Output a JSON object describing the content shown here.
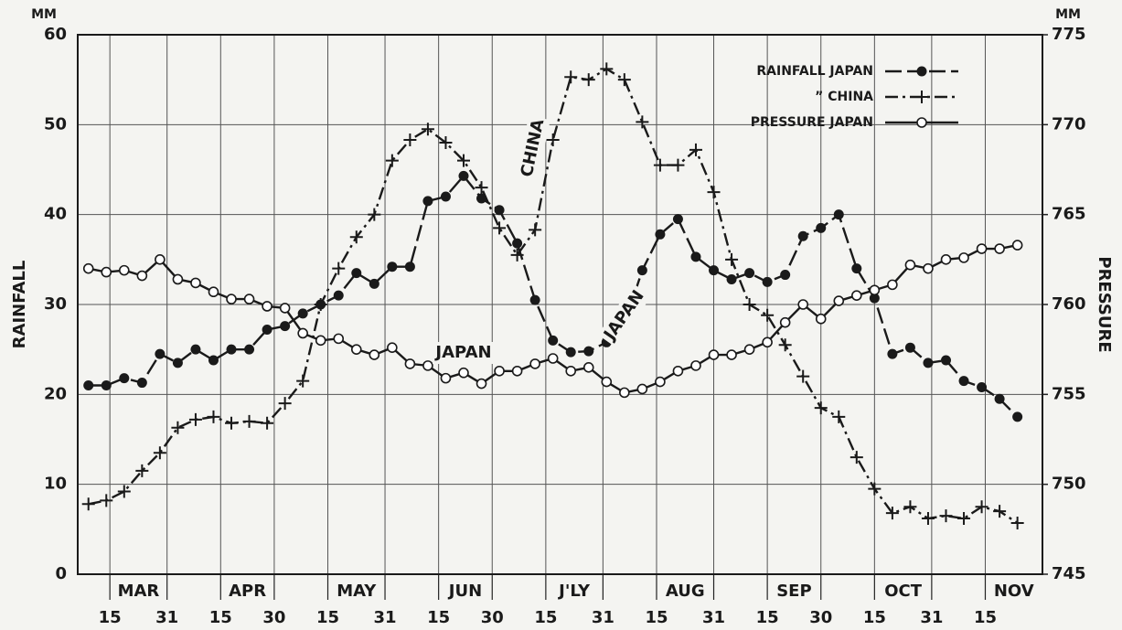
{
  "chart_data": {
    "type": "line",
    "y_label": "RAINFALL",
    "y2_label": "PRESSURE",
    "y_unit": "MM",
    "y2_unit": "MM",
    "x": [
      68,
      73,
      78,
      83,
      88,
      93,
      98,
      103,
      108,
      113,
      118,
      123,
      128,
      133,
      138,
      143,
      148,
      153,
      158,
      163,
      168,
      173,
      178,
      183,
      188,
      193,
      198,
      203,
      208,
      213,
      218,
      223,
      228,
      233,
      238,
      243,
      248,
      253,
      258,
      263,
      268,
      273,
      278,
      283,
      288,
      293,
      298,
      303,
      308,
      313,
      318,
      323,
      328
    ],
    "xlim": [
      65,
      335
    ],
    "xticks": [
      {
        "value": 74,
        "label": "15"
      },
      {
        "value": 90,
        "label": "31"
      },
      {
        "value": 105,
        "label": "15"
      },
      {
        "value": 120,
        "label": "30"
      },
      {
        "value": 135,
        "label": "15"
      },
      {
        "value": 151,
        "label": "31"
      },
      {
        "value": 166,
        "label": "15"
      },
      {
        "value": 181,
        "label": "30"
      },
      {
        "value": 196,
        "label": "15"
      },
      {
        "value": 212,
        "label": "31"
      },
      {
        "value": 227,
        "label": "15"
      },
      {
        "value": 243,
        "label": "31"
      },
      {
        "value": 258,
        "label": "15"
      },
      {
        "value": 273,
        "label": "30"
      },
      {
        "value": 288,
        "label": "15"
      },
      {
        "value": 304,
        "label": "31"
      },
      {
        "value": 319,
        "label": "15"
      }
    ],
    "months": [
      "MAR",
      "APR",
      "MAY",
      "JUN",
      "J'LY",
      "AUG",
      "SEP",
      "OCT",
      "NOV"
    ],
    "ylim": [
      0,
      60
    ],
    "yticks": [
      0,
      10,
      20,
      30,
      40,
      50,
      60
    ],
    "y2lim": [
      745,
      775
    ],
    "y2ticks": [
      745,
      750,
      755,
      760,
      765,
      770,
      775
    ],
    "grid": true,
    "series": [
      {
        "name": "RAINFALL  JAPAN",
        "color": "#1a1a1a",
        "marker": "dot",
        "dash": "18 6",
        "values": [
          21.0,
          21.0,
          21.8,
          21.3,
          24.5,
          23.5,
          25.0,
          23.8,
          25.0,
          25.0,
          27.2,
          27.6,
          29.0,
          30.0,
          31.0,
          33.5,
          32.3,
          34.2,
          34.2,
          41.5,
          42.0,
          44.3,
          41.8,
          40.5,
          36.8,
          30.5,
          26.0,
          24.7,
          24.8,
          25.8,
          27.8,
          33.8,
          37.8,
          39.5,
          35.3,
          33.8,
          32.8,
          33.5,
          32.5,
          33.3,
          37.6,
          38.5,
          40.0,
          34.0,
          30.7,
          24.5,
          25.2,
          23.5,
          23.8,
          21.5,
          20.8,
          19.5,
          17.5
        ]
      },
      {
        "name": "”   CHINA",
        "color": "#1a1a1a",
        "marker": "plus",
        "dash": "14 5 3 5",
        "values": [
          7.8,
          8.2,
          9.2,
          11.5,
          13.5,
          16.3,
          17.2,
          17.5,
          16.8,
          17.0,
          16.8,
          19.0,
          21.5,
          30.0,
          34.0,
          37.5,
          40.0,
          46.0,
          48.3,
          49.5,
          48.0,
          46.0,
          43.0,
          38.5,
          35.5,
          38.3,
          48.3,
          55.3,
          55.0,
          56.2,
          55.0,
          50.3,
          45.5,
          45.5,
          47.2,
          42.5,
          35.0,
          30.0,
          28.8,
          25.5,
          22.0,
          18.5,
          17.5,
          13.0,
          9.5,
          6.8,
          7.5,
          6.2,
          6.5,
          6.2,
          7.5,
          7.0,
          5.7
        ]
      },
      {
        "name": "PRESSURE  JAPAN",
        "color": "#1a1a1a",
        "marker": "circle",
        "dash": "none",
        "axis": "y2",
        "values": [
          762.0,
          761.8,
          761.9,
          761.6,
          762.5,
          761.4,
          761.2,
          760.7,
          760.3,
          760.3,
          759.9,
          759.8,
          758.4,
          758.0,
          758.1,
          757.5,
          757.2,
          757.6,
          756.7,
          756.6,
          755.9,
          756.2,
          755.6,
          756.3,
          756.3,
          756.7,
          757.0,
          756.3,
          756.5,
          755.7,
          755.1,
          755.3,
          755.7,
          756.3,
          756.6,
          757.2,
          757.2,
          757.5,
          757.9,
          759.0,
          760.0,
          759.2,
          760.2,
          760.5,
          760.8,
          761.1,
          762.2,
          762.0,
          762.5,
          762.6,
          763.1,
          763.1,
          763.3
        ]
      }
    ],
    "annotations": [
      "CHINA",
      "JAPAN",
      "JAPAN"
    ]
  }
}
